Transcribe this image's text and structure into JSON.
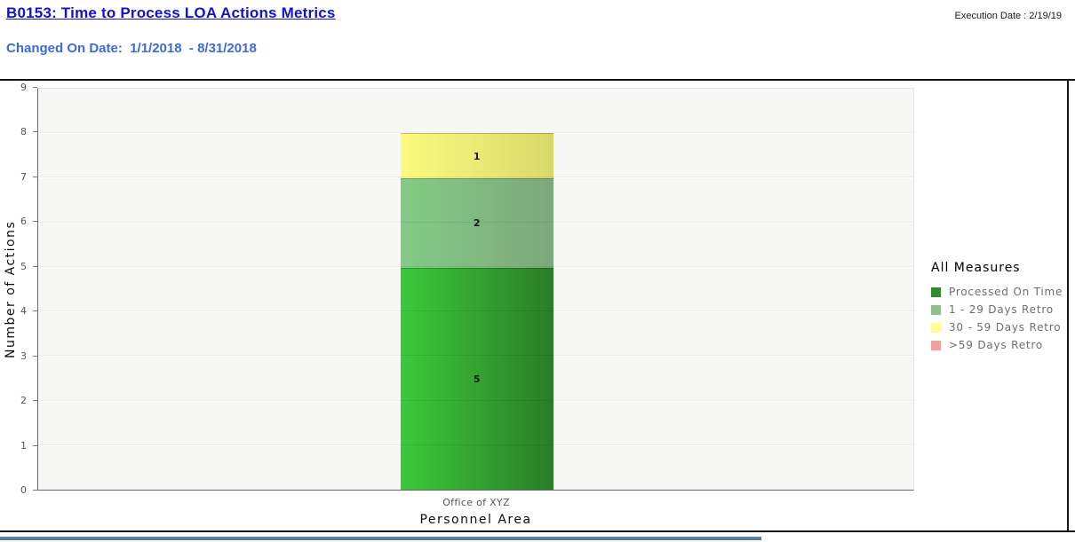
{
  "header": {
    "title": "B0153: Time to Process LOA Actions Metrics",
    "changed_on_label": "Changed On Date:",
    "changed_on_value": "1/1/2018  - 8/31/2018",
    "execution_date": "Execution Date : 2/19/19"
  },
  "colors": {
    "title_blue": "#1212d0",
    "subtitle_blue": "#3e6ad8",
    "scrollbar_blue": "#4d7ea6",
    "plot_background": "#f7f7f6"
  },
  "chart_data": {
    "type": "bar",
    "stacked": true,
    "title": "",
    "xlabel": "Personnel Area",
    "ylabel": "Number of Actions",
    "categories": [
      "Office of XYZ"
    ],
    "series": [
      {
        "name": "Processed On Time",
        "values": [
          5
        ],
        "color": "#2e8b2e",
        "gradient": [
          "#3bc93b",
          "#2a7d26"
        ]
      },
      {
        "name": "1 - 29 Days Retro",
        "values": [
          2
        ],
        "color": "#8fc08f",
        "gradient": [
          "#83cc86",
          "#7da77b"
        ]
      },
      {
        "name": "30 - 59 Days Retro",
        "values": [
          1
        ],
        "color": "#ffff94",
        "gradient": [
          "#fbfb80",
          "#d9d96a"
        ]
      },
      {
        "name": ">59 Days Retro",
        "values": [
          0
        ],
        "color": "#f5a0a0",
        "gradient": [
          "#f5a8a8",
          "#d98585"
        ]
      }
    ],
    "ylim": [
      0,
      9
    ],
    "yticks": [
      0,
      1,
      2,
      3,
      4,
      5,
      6,
      7,
      8,
      9
    ],
    "grid": "horizontal",
    "legend_title": "All Measures",
    "legend_position": "right"
  }
}
